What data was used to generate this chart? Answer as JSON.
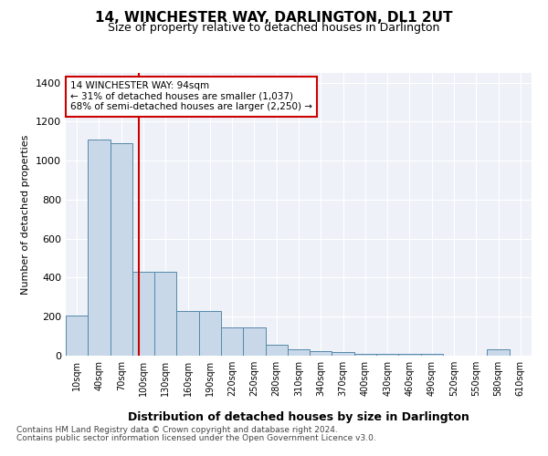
{
  "title": "14, WINCHESTER WAY, DARLINGTON, DL1 2UT",
  "subtitle": "Size of property relative to detached houses in Darlington",
  "xlabel": "Distribution of detached houses by size in Darlington",
  "ylabel": "Number of detached properties",
  "property_size": 94,
  "property_label": "14 WINCHESTER WAY: 94sqm",
  "annotation_line1": "← 31% of detached houses are smaller (1,037)",
  "annotation_line2": "68% of semi-detached houses are larger (2,250) →",
  "footer_line1": "Contains HM Land Registry data © Crown copyright and database right 2024.",
  "footer_line2": "Contains public sector information licensed under the Open Government Licence v3.0.",
  "bin_labels": [
    "10sqm",
    "40sqm",
    "70sqm",
    "100sqm",
    "130sqm",
    "160sqm",
    "190sqm",
    "220sqm",
    "250sqm",
    "280sqm",
    "310sqm",
    "340sqm",
    "370sqm",
    "400sqm",
    "430sqm",
    "460sqm",
    "490sqm",
    "520sqm",
    "550sqm",
    "580sqm",
    "610sqm"
  ],
  "bar_values": [
    205,
    1110,
    1090,
    430,
    430,
    230,
    230,
    145,
    145,
    55,
    35,
    25,
    20,
    10,
    10,
    10,
    10,
    0,
    0,
    35,
    0
  ],
  "bar_color": "#c8d8e8",
  "bar_edge_color": "#5588aa",
  "vline_color": "#cc0000",
  "annotation_box_color": "#cc0000",
  "ylim": [
    0,
    1450
  ],
  "yticks": [
    0,
    200,
    400,
    600,
    800,
    1000,
    1200,
    1400
  ],
  "background_color": "#eef2f8",
  "plot_bg_color": "#eef2f8",
  "grid_color": "#ffffff"
}
